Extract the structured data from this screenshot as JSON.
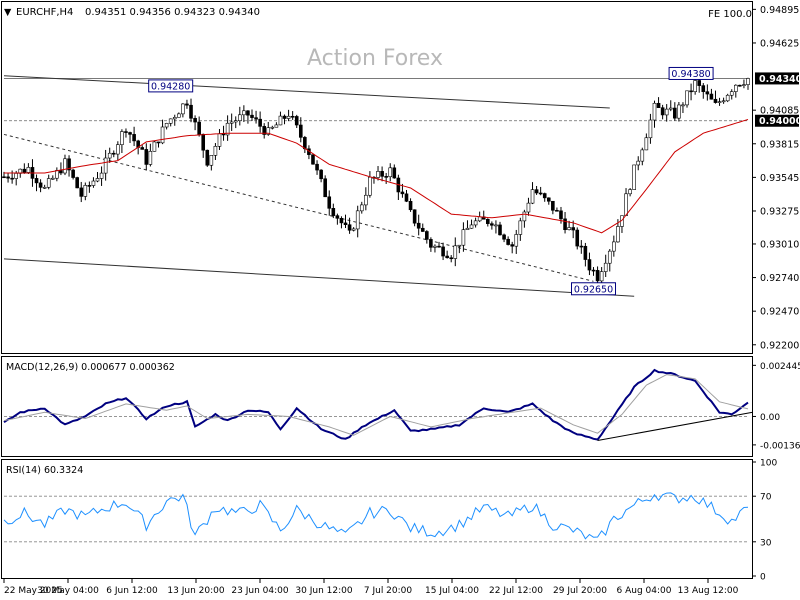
{
  "header": {
    "arrow": "▼",
    "symbol": "EURCHF,H4",
    "ohlc": "0.94351 0.94356 0.94323 0.94340",
    "fe": "FE 100.0"
  },
  "watermark": "Action Forex",
  "colors": {
    "background": "#ffffff",
    "price": "#000000",
    "ma": "#cc0000",
    "macd": "#000080",
    "signal": "#a0a0a0",
    "rsi": "#1e90ff",
    "grid_dash": "#555555",
    "price_tag": "#000000",
    "label_border": "#000080"
  },
  "chart_data": [
    {
      "type": "line",
      "panel": "price",
      "symbol": "EURCHF",
      "timeframe": "H4",
      "ylim": [
        0.9215,
        0.9493
      ],
      "y_ticks": [
        0.94895,
        0.94625,
        0.94085,
        0.93815,
        0.93545,
        0.93275,
        0.9301,
        0.9274,
        0.9247,
        0.922
      ],
      "y_tick_labels": [
        "0.94895",
        "0.94625",
        "0.94085",
        "0.93815",
        "0.93545",
        "0.93275",
        "0.93010",
        "0.92740",
        "0.92470",
        "0.92200"
      ],
      "x_tick_labels": [
        "22 May 2025",
        "30 May 04:00",
        "6 Jun 12:00",
        "13 Jun 20:00",
        "23 Jun 04:00",
        "30 Jun 12:00",
        "7 Jul 20:00",
        "15 Jul 04:00",
        "22 Jul 12:00",
        "29 Jul 20:00",
        "6 Aug 04:00",
        "13 Aug 12:00"
      ],
      "anchors": [
        [
          0,
          0.9355
        ],
        [
          6,
          0.9362
        ],
        [
          10,
          0.9345
        ],
        [
          15,
          0.9366
        ],
        [
          19,
          0.934
        ],
        [
          24,
          0.936
        ],
        [
          30,
          0.9395
        ],
        [
          35,
          0.9368
        ],
        [
          40,
          0.9398
        ],
        [
          45,
          0.9416
        ],
        [
          50,
          0.9368
        ],
        [
          55,
          0.9398
        ],
        [
          60,
          0.9405
        ],
        [
          65,
          0.939
        ],
        [
          70,
          0.9406
        ],
        [
          75,
          0.9375
        ],
        [
          80,
          0.9333
        ],
        [
          85,
          0.9308
        ],
        [
          90,
          0.9352
        ],
        [
          95,
          0.936
        ],
        [
          100,
          0.9325
        ],
        [
          105,
          0.93
        ],
        [
          110,
          0.9293
        ],
        [
          115,
          0.9318
        ],
        [
          120,
          0.932
        ],
        [
          125,
          0.93
        ],
        [
          130,
          0.9345
        ],
        [
          135,
          0.933
        ],
        [
          140,
          0.9308
        ],
        [
          144,
          0.9283
        ],
        [
          146,
          0.9275
        ],
        [
          150,
          0.9305
        ],
        [
          155,
          0.936
        ],
        [
          160,
          0.941
        ],
        [
          165,
          0.9405
        ],
        [
          170,
          0.943
        ],
        [
          175,
          0.9412
        ],
        [
          180,
          0.943
        ],
        [
          183,
          0.9434
        ]
      ],
      "moving_average": {
        "color": "#cc0000",
        "anchors": [
          [
            0,
            0.9358
          ],
          [
            10,
            0.9358
          ],
          [
            20,
            0.9364
          ],
          [
            28,
            0.9368
          ],
          [
            35,
            0.9383
          ],
          [
            45,
            0.9388
          ],
          [
            55,
            0.939
          ],
          [
            65,
            0.939
          ],
          [
            72,
            0.9382
          ],
          [
            80,
            0.9365
          ],
          [
            90,
            0.9355
          ],
          [
            100,
            0.9346
          ],
          [
            110,
            0.9325
          ],
          [
            120,
            0.9322
          ],
          [
            128,
            0.9325
          ],
          [
            140,
            0.9318
          ],
          [
            147,
            0.931
          ],
          [
            152,
            0.932
          ],
          [
            158,
            0.9345
          ],
          [
            165,
            0.9375
          ],
          [
            172,
            0.939
          ],
          [
            178,
            0.9396
          ],
          [
            183,
            0.9401
          ]
        ]
      },
      "trendlines": [
        {
          "name": "upper channel",
          "from": [
            0,
            0.94362
          ],
          "to": [
            149,
            0.94102
          ]
        },
        {
          "name": "lower channel",
          "from": [
            0,
            0.9289
          ],
          "to": [
            155,
            0.9259
          ]
        },
        {
          "name": "dashed support",
          "from": [
            0,
            0.9389
          ],
          "to": [
            145,
            0.9271
          ],
          "dashed": true
        }
      ],
      "horizontal_lines": [
        {
          "value": 0.94,
          "dashed": true
        },
        {
          "value": 0.9434,
          "dashed": false
        }
      ],
      "annotations": [
        {
          "text": "0.94280",
          "x": 41,
          "y": 0.9428
        },
        {
          "text": "0.92650",
          "x": 145,
          "y": 0.9265
        },
        {
          "text": "0.94380",
          "x": 169,
          "y": 0.9438
        }
      ],
      "price_tags": [
        {
          "text": "0.94340",
          "value": 0.9434
        },
        {
          "text": "0.94000",
          "value": 0.94
        }
      ]
    },
    {
      "type": "line",
      "panel": "macd",
      "label": "MACD(12,26,9) 0.000677 0.000362",
      "ylim": [
        -0.0017,
        0.0027
      ],
      "y_ticks": [
        0.002445,
        0.0,
        -0.00136
      ],
      "y_tick_labels": [
        "0.002445",
        "0.00",
        "-0.00136"
      ],
      "series": [
        {
          "name": "MACD",
          "anchors": [
            [
              0,
              -0.0003
            ],
            [
              4,
              0.0002
            ],
            [
              10,
              0.0004
            ],
            [
              15,
              -0.0004
            ],
            [
              20,
              0.0
            ],
            [
              25,
              0.0006
            ],
            [
              30,
              0.0009
            ],
            [
              35,
              -0.0001
            ],
            [
              40,
              0.0005
            ],
            [
              45,
              0.0007
            ],
            [
              47,
              -0.0005
            ],
            [
              52,
              0.0001
            ],
            [
              55,
              -0.0002
            ],
            [
              60,
              0.0003
            ],
            [
              65,
              0.0002
            ],
            [
              68,
              -0.0006
            ],
            [
              72,
              0.0004
            ],
            [
              78,
              -0.0006
            ],
            [
              84,
              -0.0011
            ],
            [
              88,
              -0.0005
            ],
            [
              92,
              -0.0001
            ],
            [
              96,
              0.0003
            ],
            [
              100,
              -0.0007
            ],
            [
              106,
              -0.0006
            ],
            [
              112,
              -0.0004
            ],
            [
              118,
              0.0004
            ],
            [
              124,
              0.0002
            ],
            [
              130,
              0.0006
            ],
            [
              135,
              -0.0002
            ],
            [
              140,
              -0.0008
            ],
            [
              146,
              -0.0011
            ],
            [
              150,
              0.0
            ],
            [
              155,
              0.0014
            ],
            [
              160,
              0.0022
            ],
            [
              165,
              0.002
            ],
            [
              170,
              0.0017
            ],
            [
              176,
              0.0002
            ],
            [
              179,
              0.0001
            ],
            [
              183,
              0.00068
            ]
          ]
        },
        {
          "name": "Signal",
          "anchors": [
            [
              0,
              -0.0002
            ],
            [
              10,
              0.0002
            ],
            [
              20,
              -0.0001
            ],
            [
              30,
              0.0006
            ],
            [
              40,
              0.0003
            ],
            [
              45,
              0.0005
            ],
            [
              50,
              -0.0001
            ],
            [
              60,
              0.0001
            ],
            [
              70,
              0.0
            ],
            [
              80,
              -0.0005
            ],
            [
              86,
              -0.0009
            ],
            [
              95,
              0.0
            ],
            [
              105,
              -0.0005
            ],
            [
              115,
              -0.0001
            ],
            [
              125,
              0.0002
            ],
            [
              132,
              0.0004
            ],
            [
              140,
              -0.0004
            ],
            [
              146,
              -0.0008
            ],
            [
              152,
              0.0001
            ],
            [
              158,
              0.0015
            ],
            [
              163,
              0.002
            ],
            [
              170,
              0.0018
            ],
            [
              176,
              0.0007
            ],
            [
              183,
              0.00036
            ]
          ]
        }
      ],
      "trendline": {
        "from": [
          146,
          -0.00115
        ],
        "to": [
          183,
          0.0001
        ]
      }
    },
    {
      "type": "line",
      "panel": "rsi",
      "label": "RSI(14) 60.3324",
      "ylim": [
        0,
        100
      ],
      "y_ticks": [
        100,
        70,
        30,
        0
      ],
      "y_tick_labels": [
        "100",
        "70",
        "30",
        "0"
      ],
      "levels": [
        70,
        30
      ],
      "anchors": [
        [
          0,
          48
        ],
        [
          5,
          55
        ],
        [
          10,
          45
        ],
        [
          15,
          58
        ],
        [
          20,
          52
        ],
        [
          25,
          60
        ],
        [
          30,
          65
        ],
        [
          35,
          45
        ],
        [
          40,
          66
        ],
        [
          44,
          70
        ],
        [
          47,
          35
        ],
        [
          52,
          60
        ],
        [
          58,
          55
        ],
        [
          63,
          62
        ],
        [
          68,
          40
        ],
        [
          72,
          58
        ],
        [
          78,
          45
        ],
        [
          84,
          35
        ],
        [
          90,
          55
        ],
        [
          95,
          58
        ],
        [
          100,
          42
        ],
        [
          106,
          38
        ],
        [
          112,
          45
        ],
        [
          118,
          60
        ],
        [
          124,
          52
        ],
        [
          130,
          62
        ],
        [
          135,
          45
        ],
        [
          140,
          40
        ],
        [
          146,
          30
        ],
        [
          150,
          50
        ],
        [
          155,
          62
        ],
        [
          160,
          72
        ],
        [
          165,
          68
        ],
        [
          170,
          70
        ],
        [
          175,
          58
        ],
        [
          179,
          48
        ],
        [
          183,
          60
        ]
      ]
    }
  ]
}
